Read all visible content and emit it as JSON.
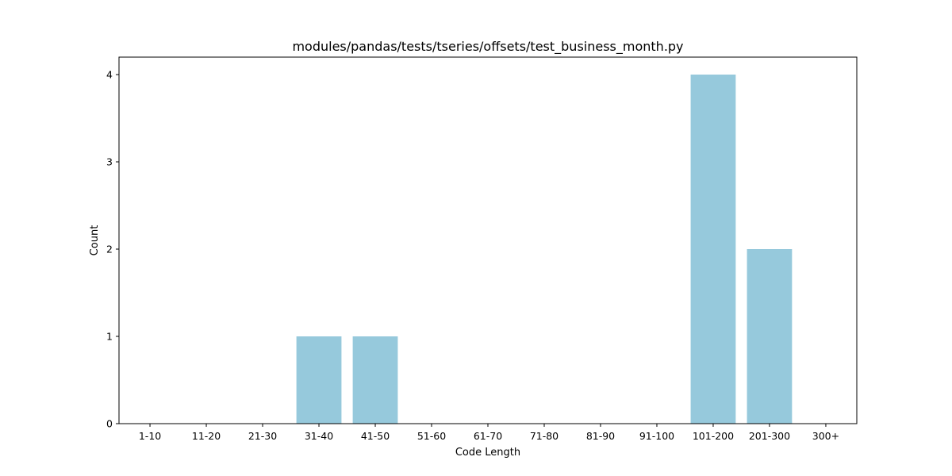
{
  "chart_data": {
    "type": "bar",
    "title": "modules/pandas/tests/tseries/offsets/test_business_month.py",
    "xlabel": "Code Length",
    "ylabel": "Count",
    "categories": [
      "1-10",
      "11-20",
      "21-30",
      "31-40",
      "41-50",
      "51-60",
      "61-70",
      "71-80",
      "81-90",
      "91-100",
      "101-200",
      "201-300",
      "300+"
    ],
    "values": [
      0,
      0,
      0,
      1,
      1,
      0,
      0,
      0,
      0,
      0,
      4,
      2,
      0
    ],
    "ylim": [
      0,
      4.2
    ],
    "yticks": [
      "0",
      "1",
      "2",
      "3",
      "4"
    ],
    "bar_color": "#96c9dc",
    "grid": false,
    "legend": "none"
  }
}
